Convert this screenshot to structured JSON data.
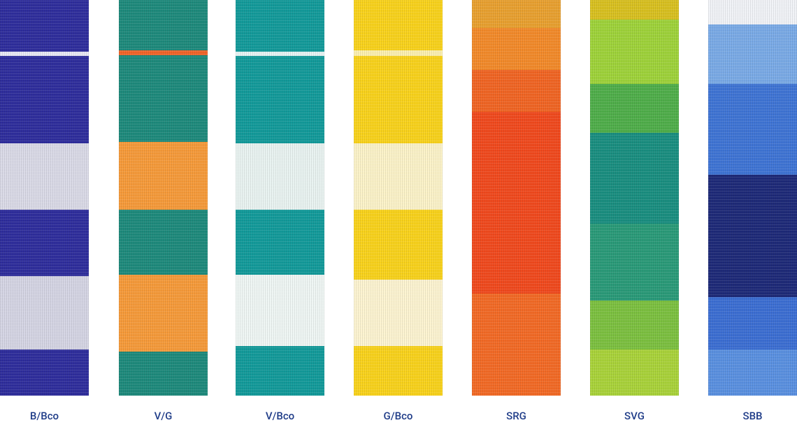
{
  "swatches": [
    {
      "label": "B/Bco"
    },
    {
      "label": "V/G"
    },
    {
      "label": "V/Bco"
    },
    {
      "label": "G/Bco"
    },
    {
      "label": "SRG"
    },
    {
      "label": "SVG"
    },
    {
      "label": "SBB"
    }
  ]
}
